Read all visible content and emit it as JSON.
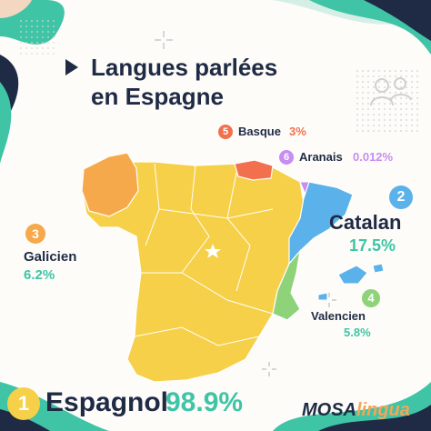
{
  "title": {
    "line1": "Langues parlées",
    "line2": "en Espagne"
  },
  "languages": [
    {
      "rank": "1",
      "name": "Espagnol",
      "percent": "98.9%",
      "color": "#f6d049"
    },
    {
      "rank": "2",
      "name": "Catalan",
      "percent": "17.5%",
      "color": "#5bb2ea"
    },
    {
      "rank": "3",
      "name": "Galicien",
      "percent": "6.2%",
      "color": "#f6a94a"
    },
    {
      "rank": "4",
      "name": "Valencien",
      "percent": "5.8%",
      "color": "#8ed27a"
    },
    {
      "rank": "5",
      "name": "Basque",
      "percent": "3%",
      "color": "#f2704e"
    },
    {
      "rank": "6",
      "name": "Aranais",
      "percent": "0.012%",
      "color": "#c78df2"
    }
  ],
  "brand": {
    "part1": "MOSA",
    "part2": "lingua"
  },
  "colors": {
    "navy": "#1f2a44",
    "teal": "#3fc4a6",
    "map_borders": "#ffffff",
    "capital_star": "#ffffff"
  }
}
